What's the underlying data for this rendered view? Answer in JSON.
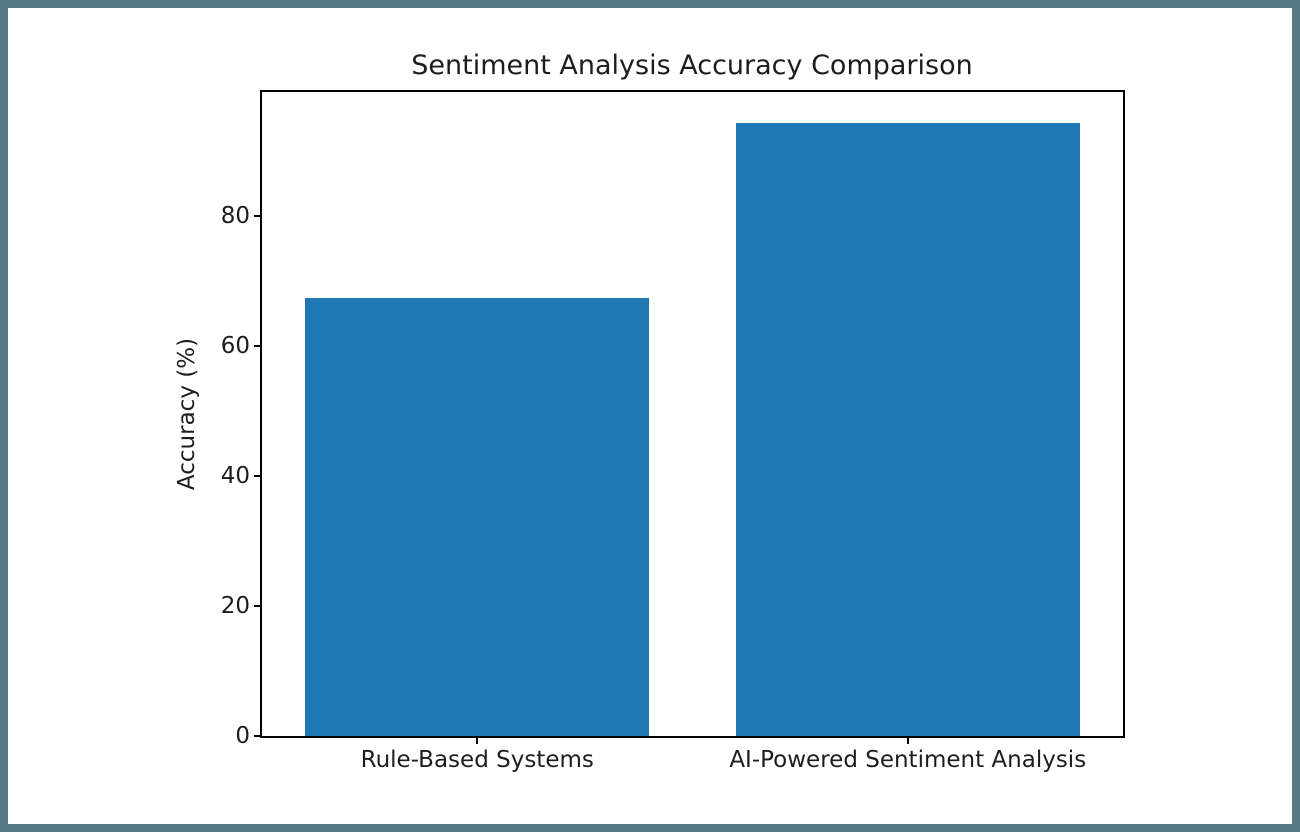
{
  "figure": {
    "frame_color": "#567b87",
    "background_color": "#ffffff"
  },
  "chart_data": {
    "type": "bar",
    "title": "Sentiment Analysis Accuracy Comparison",
    "categories": [
      "Rule-Based Systems",
      "AI-Powered Sentiment Analysis"
    ],
    "values": [
      67.4,
      94.3
    ],
    "xlabel": "",
    "ylabel": "Accuracy (%)",
    "ylim": [
      0,
      99
    ],
    "yticks": [
      0,
      20,
      40,
      60,
      80
    ],
    "bar_color": "#1f77b4",
    "bar_width_fraction": 0.8,
    "axis_color": "#000000",
    "text_color": "#1d1d1d",
    "grid": false,
    "legend": "none"
  }
}
